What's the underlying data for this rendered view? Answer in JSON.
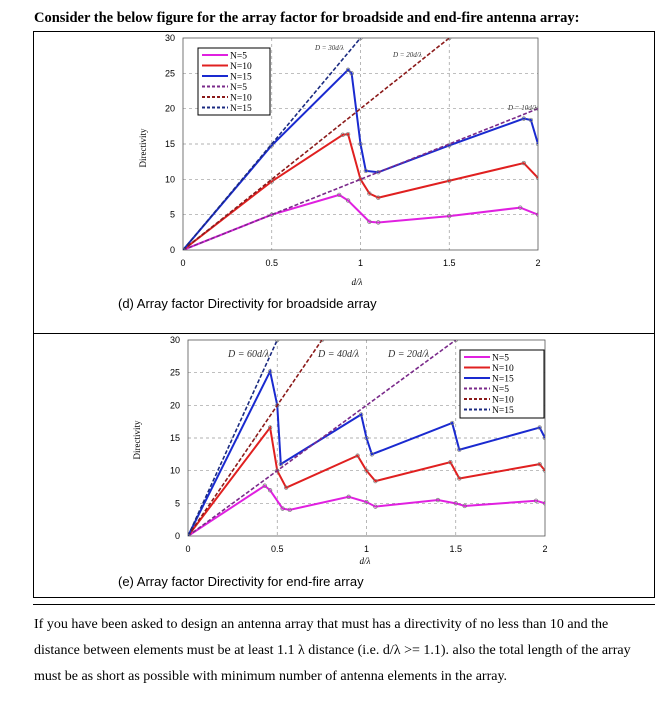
{
  "document": {
    "title": "Consider the below figure for the array factor for broadside and end-fire antenna array:",
    "question": "If you have been asked to design an antenna array that must has a directivity of no less than 10 and the distance between elements must be at least 1.1 λ distance (i.e. d/λ >= 1.1). also the total length of the array must be as short as possible with minimum number of antenna elements in the array."
  },
  "chart_data": [
    {
      "type": "line",
      "caption": "(d) Array factor Directivity for broadside array",
      "xlabel": "d/λ",
      "ylabel": "Directivity",
      "xlim": [
        0,
        2
      ],
      "ylim": [
        0,
        30
      ],
      "xticks": [
        "0",
        "0.5",
        "1",
        "1.5",
        "2"
      ],
      "yticks": [
        "0",
        "5",
        "10",
        "15",
        "20",
        "25",
        "30"
      ],
      "grid": true,
      "legend": "top-left",
      "annotations": [
        "D = 30d/λ",
        "D = 20d/λ",
        "D = 10d/λ"
      ],
      "series": [
        {
          "name": "N=5",
          "style": "solid",
          "color": "#e020e0",
          "points": [
            [
              0,
              0
            ],
            [
              0.5,
              5
            ],
            [
              0.88,
              7.8
            ],
            [
              0.93,
              7
            ],
            [
              1.05,
              4
            ],
            [
              1.1,
              3.9
            ],
            [
              1.5,
              4.8
            ],
            [
              1.9,
              6
            ],
            [
              2,
              5
            ]
          ]
        },
        {
          "name": "N=10",
          "style": "solid",
          "color": "#e02020",
          "points": [
            [
              0,
              0
            ],
            [
              0.5,
              9.7
            ],
            [
              0.9,
              16.3
            ],
            [
              0.93,
              16.4
            ],
            [
              1.0,
              10
            ],
            [
              1.05,
              8
            ],
            [
              1.1,
              7.4
            ],
            [
              1.5,
              9.8
            ],
            [
              1.92,
              12.3
            ],
            [
              2,
              10.2
            ]
          ]
        },
        {
          "name": "N=15",
          "style": "solid",
          "color": "#1a2ad0",
          "points": [
            [
              0,
              0
            ],
            [
              0.5,
              14.8
            ],
            [
              0.93,
              25.5
            ],
            [
              0.95,
              25
            ],
            [
              1.0,
              15
            ],
            [
              1.03,
              11.2
            ],
            [
              1.1,
              11
            ],
            [
              1.5,
              14.8
            ],
            [
              1.92,
              18.6
            ],
            [
              1.96,
              18.4
            ],
            [
              2,
              15
            ]
          ]
        },
        {
          "name": "N=5",
          "style": "dashed",
          "color": "#7a2a8a",
          "points": [
            [
              0,
              0
            ],
            [
              2,
              20
            ]
          ]
        },
        {
          "name": "N=10",
          "style": "dashed",
          "color": "#8b1a1a",
          "points": [
            [
              0,
              0
            ],
            [
              1.5,
              30
            ]
          ]
        },
        {
          "name": "N=15",
          "style": "dashed",
          "color": "#1a2a80",
          "points": [
            [
              0,
              0
            ],
            [
              1,
              30
            ]
          ]
        }
      ]
    },
    {
      "type": "line",
      "caption": "(e) Array factor Directivity for end-fire array",
      "xlabel": "d/λ",
      "ylabel": "Directivity",
      "xlim": [
        0,
        2
      ],
      "ylim": [
        0,
        30
      ],
      "xticks": [
        "0",
        "0.5",
        "1",
        "1.5",
        "2"
      ],
      "yticks": [
        "0",
        "5",
        "10",
        "15",
        "20",
        "25",
        "30"
      ],
      "grid": true,
      "legend": "top-right",
      "annotations": [
        "D = 60d/λ",
        "D = 40d/λ",
        "D = 20d/λ"
      ],
      "series": [
        {
          "name": "N=5",
          "style": "solid",
          "color": "#e020e0",
          "points": [
            [
              0,
              0
            ],
            [
              0.43,
              7.7
            ],
            [
              0.46,
              7
            ],
            [
              0.53,
              4.2
            ],
            [
              0.57,
              4
            ],
            [
              0.9,
              6
            ],
            [
              1,
              5.2
            ],
            [
              1.05,
              4.5
            ],
            [
              1.4,
              5.5
            ],
            [
              1.5,
              5
            ],
            [
              1.55,
              4.6
            ],
            [
              1.95,
              5.4
            ],
            [
              2,
              5
            ]
          ]
        },
        {
          "name": "N=10",
          "style": "solid",
          "color": "#e02020",
          "points": [
            [
              0,
              0
            ],
            [
              0.46,
              16.6
            ],
            [
              0.5,
              10
            ],
            [
              0.55,
              7.4
            ],
            [
              0.95,
              12.3
            ],
            [
              1.0,
              10
            ],
            [
              1.05,
              8.4
            ],
            [
              1.47,
              11.3
            ],
            [
              1.52,
              8.8
            ],
            [
              1.97,
              11
            ],
            [
              2,
              10
            ]
          ]
        },
        {
          "name": "N=15",
          "style": "solid",
          "color": "#1a2ad0",
          "points": [
            [
              0,
              0
            ],
            [
              0.46,
              25.2
            ],
            [
              0.5,
              20
            ],
            [
              0.52,
              11
            ],
            [
              0.97,
              18.6
            ],
            [
              1.0,
              15
            ],
            [
              1.03,
              12.5
            ],
            [
              1.48,
              17.3
            ],
            [
              1.52,
              13.2
            ],
            [
              1.97,
              16.6
            ],
            [
              2,
              15
            ]
          ]
        },
        {
          "name": "N=5",
          "style": "dashed",
          "color": "#7a2a8a",
          "points": [
            [
              0,
              0
            ],
            [
              1.5,
              30
            ]
          ]
        },
        {
          "name": "N=10",
          "style": "dashed",
          "color": "#8b1a1a",
          "points": [
            [
              0,
              0
            ],
            [
              0.75,
              30
            ]
          ]
        },
        {
          "name": "N=15",
          "style": "dashed",
          "color": "#1a2a80",
          "points": [
            [
              0,
              0
            ],
            [
              0.5,
              30
            ]
          ]
        }
      ]
    }
  ]
}
